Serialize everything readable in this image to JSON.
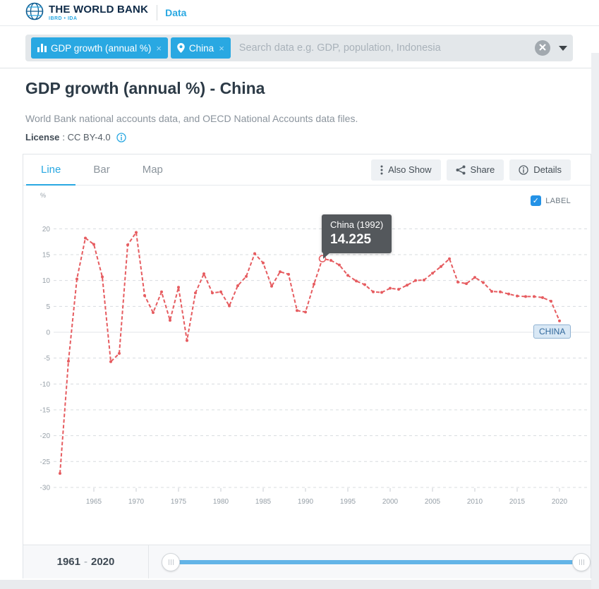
{
  "header": {
    "brand": "THE WORLD BANK",
    "brand_sub": "IBRD • IDA",
    "nav_data": "Data"
  },
  "search": {
    "chips": [
      {
        "icon": "bar-chart-icon",
        "label": "GDP growth (annual %)",
        "close": "×"
      },
      {
        "icon": "location-pin-icon",
        "label": "China",
        "close": "×"
      }
    ],
    "placeholder": "Search data e.g. GDP, population, Indonesia"
  },
  "page": {
    "title": "GDP growth (annual %) - China",
    "subtitle": "World Bank national accounts data, and OECD National Accounts data files.",
    "license_label": "License",
    "license_value": ": CC BY-4.0"
  },
  "tabs": {
    "line": "Line",
    "bar": "Bar",
    "map": "Map"
  },
  "toolbar": {
    "also_show": "Also Show",
    "share": "Share",
    "details": "Details"
  },
  "chart": {
    "unit": "%",
    "label_toggle": "LABEL",
    "label_checked": true,
    "series_tag": "CHINA",
    "tooltip": {
      "title": "China (1992)",
      "value": "14.225"
    },
    "colors": {
      "line": "#e65c60",
      "accent": "#29a8e2",
      "grid": "#d8dcdf",
      "zero_line": "#e3e6e9",
      "tick_text": "#97a0a8"
    }
  },
  "chart_data": {
    "type": "line",
    "title": "GDP growth (annual %) - China",
    "ylabel": "%",
    "ylim": [
      -30,
      20
    ],
    "yticks": [
      20,
      15,
      10,
      5,
      0,
      -5,
      -10,
      -15,
      -20,
      -25,
      -30
    ],
    "xticks": [
      1965,
      1970,
      1975,
      1980,
      1985,
      1990,
      1995,
      2000,
      2005,
      2010,
      2015,
      2020
    ],
    "grid": true,
    "legend_position": "none",
    "x": [
      1961,
      1962,
      1963,
      1964,
      1965,
      1966,
      1967,
      1968,
      1969,
      1970,
      1971,
      1972,
      1973,
      1974,
      1975,
      1976,
      1977,
      1978,
      1979,
      1980,
      1981,
      1982,
      1983,
      1984,
      1985,
      1986,
      1987,
      1988,
      1989,
      1990,
      1991,
      1992,
      1993,
      1994,
      1995,
      1996,
      1997,
      1998,
      1999,
      2000,
      2001,
      2002,
      2003,
      2004,
      2005,
      2006,
      2007,
      2008,
      2009,
      2010,
      2011,
      2012,
      2013,
      2014,
      2015,
      2016,
      2017,
      2018,
      2019,
      2020
    ],
    "series": [
      {
        "name": "China",
        "values": [
          -27.3,
          -5.6,
          10.3,
          18.2,
          17.0,
          10.7,
          -5.7,
          -4.1,
          16.9,
          19.3,
          7.1,
          3.8,
          7.8,
          2.3,
          8.7,
          -1.6,
          7.6,
          11.3,
          7.6,
          7.8,
          5.1,
          9.0,
          10.8,
          15.2,
          13.4,
          8.9,
          11.7,
          11.2,
          4.2,
          3.9,
          9.3,
          14.225,
          13.9,
          13.0,
          11.0,
          9.9,
          9.2,
          7.8,
          7.7,
          8.5,
          8.3,
          9.1,
          10.0,
          10.1,
          11.4,
          12.7,
          14.2,
          9.7,
          9.4,
          10.6,
          9.6,
          7.9,
          7.8,
          7.4,
          7.0,
          6.9,
          6.9,
          6.7,
          6.0,
          2.2
        ]
      }
    ],
    "highlight": {
      "year": 1992,
      "value": 14.225
    }
  },
  "slider": {
    "start": "1961",
    "separator": "-",
    "end": "2020"
  }
}
